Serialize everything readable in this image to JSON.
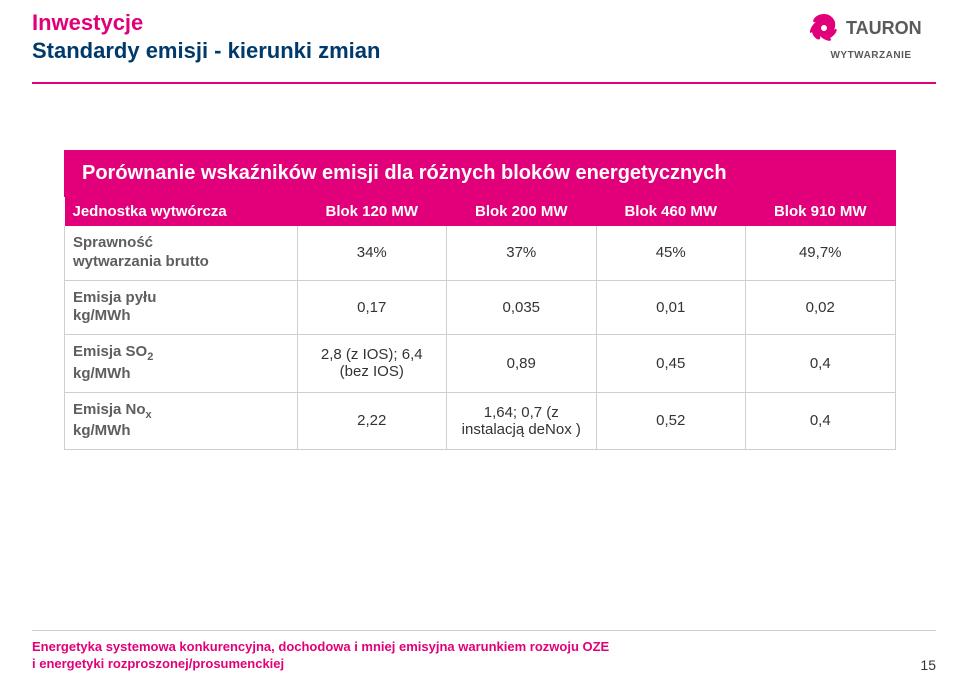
{
  "header": {
    "title1": "Inwestycje",
    "title2": "Standardy emisji - kierunki zmian",
    "logo_name": "TAURON",
    "logo_sub": "WYTWARZANIE",
    "logo_color": "#e2007a",
    "logo_text_color": "#5a5a5a"
  },
  "banner": "Porównanie wskaźników emisji dla różnych bloków energetycznych",
  "table": {
    "head_row_label": "Jednostka wytwórcza",
    "columns": [
      "Blok 120 MW",
      "Blok 200 MW",
      "Blok 460 MW",
      "Blok 910 MW"
    ],
    "rows": [
      {
        "label_html": "Sprawność<br>wytwarzania brutto",
        "cells": [
          "34%",
          "37%",
          "45%",
          "49,7%"
        ]
      },
      {
        "label_html": "Emisja pyłu<br>kg/MWh",
        "cells": [
          "0,17",
          "0,035",
          "0,01",
          "0,02"
        ]
      },
      {
        "label_html": "Emisja SO<span class=\"sub\">2</span><br>kg/MWh",
        "cells": [
          "2,8 (z IOS);  6,4 (bez IOS)",
          "0,89",
          "0,45",
          "0,4"
        ]
      },
      {
        "label_html": "Emisja No<span class=\"sub\">x</span><br>kg/MWh",
        "cells": [
          "2,22",
          "1,64;  0,7 (z instalacją deNox )",
          "0,52",
          "0,4"
        ]
      }
    ],
    "header_bg": "#e2007a",
    "header_fg": "#ffffff",
    "cell_border": "#cfcfcf",
    "rowhead_color": "#5e5e5e",
    "cell_fontsize": 15
  },
  "footer": {
    "line1": "Energetyka systemowa konkurencyjna, dochodowa i mniej emisyjna warunkiem rozwoju OZE",
    "line2": "i energetyki rozproszonej/prosumenckiej",
    "pagenum": "15",
    "color": "#e2007a"
  },
  "colors": {
    "magenta": "#e2007a",
    "navy": "#003a6b",
    "rule": "#cfcfcf"
  }
}
